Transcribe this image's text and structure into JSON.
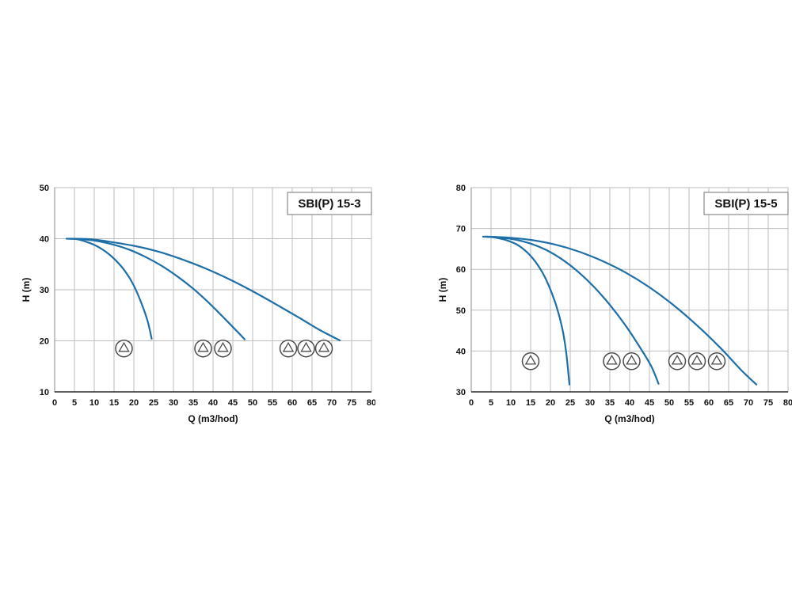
{
  "page": {
    "background": "#ffffff"
  },
  "colors": {
    "curve": "#1e6fa8",
    "grid": "#bdbdbd",
    "axis": "#2b2b2b",
    "pump_outline": "#4a4a4a",
    "text": "#111111"
  },
  "chart_data": [
    {
      "type": "line",
      "title": "SBI(P) 15-3",
      "xlabel": "Q (m3/hod)",
      "ylabel": "H (m)",
      "xlim": [
        0,
        80
      ],
      "ylim": [
        10,
        50
      ],
      "xticks": [
        0,
        5,
        10,
        15,
        20,
        25,
        30,
        35,
        40,
        45,
        50,
        55,
        60,
        65,
        70,
        75,
        80
      ],
      "yticks": [
        10,
        20,
        30,
        40,
        50
      ],
      "grid": true,
      "legend": "none",
      "series": [
        {
          "name": "curve-1-pump",
          "points": [
            [
              3,
              40
            ],
            [
              5.5,
              39.9
            ],
            [
              8,
              39.4
            ],
            [
              10.5,
              38.6
            ],
            [
              13,
              37.4
            ],
            [
              15.5,
              35.7
            ],
            [
              18,
              33.4
            ],
            [
              20,
              30.8
            ],
            [
              22,
              27.2
            ],
            [
              23.5,
              23.8
            ],
            [
              24.5,
              20.4
            ]
          ]
        },
        {
          "name": "curve-2-pumps",
          "points": [
            [
              3.5,
              40
            ],
            [
              7,
              39.9
            ],
            [
              11,
              39.5
            ],
            [
              15,
              38.8
            ],
            [
              19,
              37.8
            ],
            [
              23,
              36.4
            ],
            [
              27,
              34.7
            ],
            [
              31,
              32.6
            ],
            [
              35,
              30.2
            ],
            [
              39,
              27.4
            ],
            [
              43,
              24.3
            ],
            [
              46,
              21.9
            ],
            [
              48,
              20.3
            ]
          ]
        },
        {
          "name": "curve-3-pumps",
          "points": [
            [
              4,
              40
            ],
            [
              9,
              39.9
            ],
            [
              14,
              39.4
            ],
            [
              20,
              38.6
            ],
            [
              26,
              37.5
            ],
            [
              32,
              36
            ],
            [
              38,
              34.2
            ],
            [
              44,
              32.1
            ],
            [
              50,
              29.7
            ],
            [
              56,
              27.1
            ],
            [
              62,
              24.4
            ],
            [
              67,
              22.1
            ],
            [
              72,
              20.1
            ]
          ]
        }
      ],
      "pump_icons": [
        [
          17.5,
          18.5
        ],
        [
          37.5,
          18.5
        ],
        [
          42.5,
          18.5
        ],
        [
          59,
          18.5
        ],
        [
          63.5,
          18.5
        ],
        [
          68,
          18.5
        ]
      ]
    },
    {
      "type": "line",
      "title": "SBI(P) 15-5",
      "xlabel": "Q (m3/hod)",
      "ylabel": "H (m)",
      "xlim": [
        0,
        80
      ],
      "ylim": [
        30,
        80
      ],
      "xticks": [
        0,
        5,
        10,
        15,
        20,
        25,
        30,
        35,
        40,
        45,
        50,
        55,
        60,
        65,
        70,
        75,
        80
      ],
      "yticks": [
        30,
        40,
        50,
        60,
        70,
        80
      ],
      "grid": true,
      "legend": "none",
      "series": [
        {
          "name": "curve-1-pump",
          "points": [
            [
              3,
              68
            ],
            [
              6,
              67.8
            ],
            [
              9,
              67.1
            ],
            [
              12,
              65.8
            ],
            [
              15,
              63.3
            ],
            [
              17.5,
              60
            ],
            [
              19.5,
              56.2
            ],
            [
              21.5,
              51
            ],
            [
              23,
              45.5
            ],
            [
              24,
              39.5
            ],
            [
              24.8,
              31.8
            ]
          ]
        },
        {
          "name": "curve-2-pumps",
          "points": [
            [
              3.5,
              68
            ],
            [
              7,
              67.8
            ],
            [
              11,
              67.3
            ],
            [
              15,
              66.3
            ],
            [
              19,
              64.7
            ],
            [
              23,
              62.4
            ],
            [
              27,
              59.4
            ],
            [
              31,
              55.7
            ],
            [
              35,
              51.3
            ],
            [
              39,
              46.2
            ],
            [
              43,
              40.3
            ],
            [
              45.5,
              36.2
            ],
            [
              47.3,
              32
            ]
          ]
        },
        {
          "name": "curve-3-pumps",
          "points": [
            [
              4,
              68
            ],
            [
              9,
              67.8
            ],
            [
              15,
              67.2
            ],
            [
              21,
              66.1
            ],
            [
              27,
              64.4
            ],
            [
              33,
              62.1
            ],
            [
              39,
              59.2
            ],
            [
              45,
              55.6
            ],
            [
              51,
              51.3
            ],
            [
              57,
              46.3
            ],
            [
              63,
              40.7
            ],
            [
              68,
              35.5
            ],
            [
              72,
              31.8
            ]
          ]
        }
      ],
      "pump_icons": [
        [
          15,
          37.5
        ],
        [
          35.5,
          37.5
        ],
        [
          40.5,
          37.5
        ],
        [
          52,
          37.5
        ],
        [
          57,
          37.5
        ],
        [
          62,
          37.5
        ]
      ]
    }
  ]
}
